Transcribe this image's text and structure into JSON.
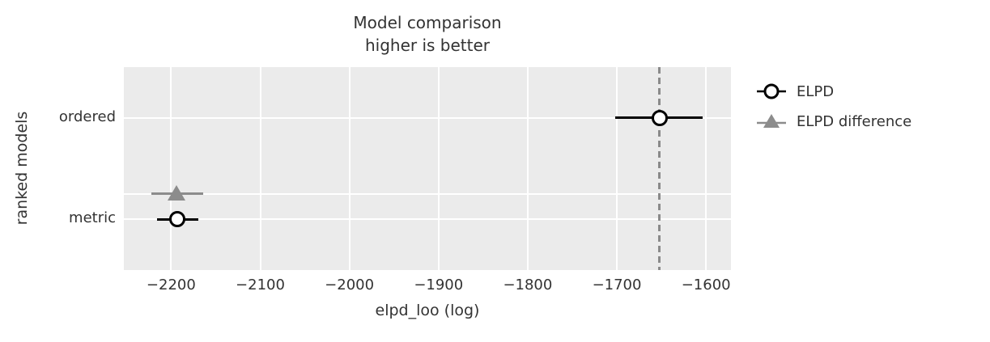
{
  "chart_data": {
    "type": "scatter",
    "subtype": "model-comparison-forest (errorbar)",
    "title": "Model comparison\nhigher is better",
    "title_lines": [
      "Model comparison",
      "higher is better"
    ],
    "xlabel": "elpd_loo (log)",
    "ylabel": "ranked models",
    "grid": true,
    "xlim": [
      -2253,
      -1572
    ],
    "ylim": [
      -0.5,
      1.5
    ],
    "x_ticks": [
      -2200,
      -2100,
      -2000,
      -1900,
      -1800,
      -1700,
      -1600
    ],
    "x_tick_labels": [
      "−2200",
      "−2100",
      "−2000",
      "−1900",
      "−1800",
      "−1700",
      "−1600"
    ],
    "rows": [
      {
        "label": "ordered",
        "y": 0
      },
      {
        "label": "metric",
        "y": 1
      }
    ],
    "grid_rows_y": [
      0,
      0.75,
      1
    ],
    "series": [
      {
        "name": "ELPD",
        "marker": "circle",
        "color": "#000000",
        "points": [
          {
            "model": "ordered",
            "x": -1652,
            "y": 0,
            "ci": [
              -1702,
              -1604
            ]
          },
          {
            "model": "metric",
            "x": -2193,
            "y": 1,
            "ci": [
              -2216,
              -2169
            ]
          }
        ]
      },
      {
        "name": "ELPD difference",
        "marker": "triangle",
        "color": "#8c8c8c",
        "points": [
          {
            "model": "metric",
            "x": -2194,
            "y": 0.75,
            "ci": [
              -2222,
              -2164
            ]
          }
        ]
      }
    ],
    "reference_line": {
      "x": -1652,
      "style": "dashed",
      "color": "#8a8a8a"
    },
    "legend_labels": [
      "ELPD",
      "ELPD difference"
    ],
    "legend_position": "outside-right-top",
    "colors": {
      "plot_background": "#ebebeb",
      "gridline": "#ffffff",
      "text": "#333333",
      "elpd_marker_fill": "#ffffff",
      "elpd_marker_edge": "#000000",
      "diff_marker": "#8c8c8c",
      "reference_line": "#8a8a8a"
    }
  }
}
